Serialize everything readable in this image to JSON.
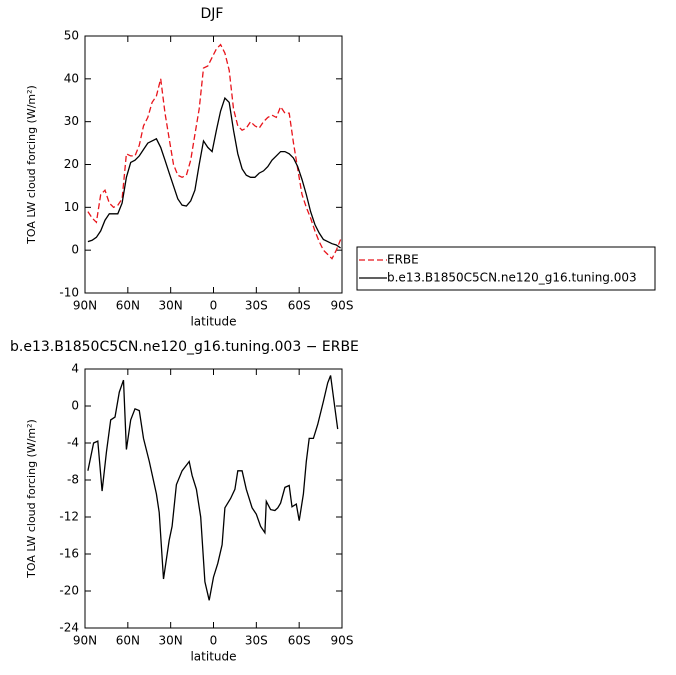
{
  "chart_data": [
    {
      "type": "line",
      "title": "DJF",
      "x_label": "latitude",
      "y_label": "TOA LW cloud forcing (W/m²)",
      "x": [
        88,
        85,
        82,
        79,
        76,
        73,
        70,
        67,
        64,
        61,
        58,
        55,
        52,
        49,
        46,
        43,
        40,
        37,
        34,
        31,
        28,
        25,
        22,
        19,
        16,
        13,
        10,
        7,
        4,
        1,
        -2,
        -5,
        -8,
        -11,
        -14,
        -17,
        -20,
        -23,
        -26,
        -29,
        -32,
        -35,
        -38,
        -41,
        -44,
        -47,
        -50,
        -53,
        -56,
        -59,
        -62,
        -65,
        -68,
        -71,
        -74,
        -77,
        -80,
        -83,
        -86,
        -89
      ],
      "series": [
        {
          "name": "ERBE",
          "color": "#e8141b",
          "dash": true,
          "values": [
            9,
            7.5,
            6.5,
            13,
            14,
            11,
            10,
            10.5,
            12,
            22.5,
            22,
            22,
            24.5,
            29,
            31,
            34.5,
            36,
            40,
            32,
            26,
            20,
            17.5,
            17,
            17.5,
            21,
            27,
            33,
            42.5,
            43,
            45,
            47,
            48,
            46,
            42,
            33,
            29,
            28,
            28.5,
            30,
            29,
            28.5,
            30,
            31,
            31.5,
            31,
            33.5,
            32,
            32,
            25,
            19,
            13,
            10,
            7.5,
            4.5,
            2,
            0,
            -1,
            -2,
            0,
            2.5
          ]
        },
        {
          "name": "b.e13.B1850C5CN.ne120_g16.tuning.003",
          "color": "#000000",
          "dash": false,
          "values": [
            2,
            2.3,
            3,
            4.5,
            7,
            8.5,
            8.5,
            8.5,
            11,
            17,
            20.5,
            21,
            22,
            23.5,
            25,
            25.5,
            26,
            24,
            21,
            18,
            15,
            12,
            10.5,
            10.3,
            11.5,
            14,
            20,
            25.5,
            24,
            23,
            28,
            32.5,
            35.5,
            34.5,
            28,
            22.5,
            19,
            17.5,
            17,
            17,
            18,
            18.5,
            19.5,
            21,
            22,
            23,
            23,
            22.5,
            21.5,
            19.5,
            16.5,
            13,
            9,
            6,
            4,
            2.5,
            2,
            1.5,
            1.2,
            0.5
          ]
        }
      ],
      "xlim": [
        90,
        -90
      ],
      "xticks": [
        {
          "value": 90,
          "label": "90N"
        },
        {
          "value": 60,
          "label": "60N"
        },
        {
          "value": 30,
          "label": "30N"
        },
        0,
        {
          "value": -30,
          "label": "30S"
        },
        {
          "value": -60,
          "label": "60S"
        },
        {
          "value": -90,
          "label": "90S"
        }
      ],
      "ylim": [
        -10,
        50
      ],
      "yticks": [
        -10,
        0,
        10,
        20,
        30,
        40,
        50
      ],
      "legend": "right"
    },
    {
      "type": "line",
      "title": "b.e13.B1850C5CN.ne120_g16.tuning.003 − ERBE",
      "x_label": "latitude",
      "y_label": "TOA LW cloud forcing (W/m²)",
      "x": [
        88,
        84,
        81,
        78,
        75,
        72,
        69,
        66,
        63,
        61,
        58,
        55,
        52,
        49,
        45,
        40,
        38,
        35,
        31,
        29,
        26,
        22,
        18,
        17,
        15,
        12,
        9,
        6,
        3,
        0,
        -3,
        -6,
        -8,
        -12,
        -15,
        -17,
        -20,
        -23,
        -27,
        -30,
        -33,
        -36,
        -37,
        -40,
        -43,
        -45,
        -47,
        -50,
        -53,
        -55,
        -58,
        -60,
        -63,
        -65,
        -67,
        -70,
        -73,
        -77,
        -80,
        -82,
        -84,
        -87
      ],
      "series": [
        {
          "name": "difference",
          "color": "#000000",
          "dash": false,
          "values": [
            -7,
            -4,
            -3.8,
            -9.2,
            -5,
            -1.5,
            -1.2,
            1.5,
            2.8,
            -4.7,
            -1.5,
            -0.3,
            -0.5,
            -3.5,
            -6,
            -9.5,
            -11.5,
            -18.7,
            -14.5,
            -13,
            -8.5,
            -7,
            -6.2,
            -6,
            -7.5,
            -9,
            -12,
            -19,
            -21,
            -18.5,
            -17,
            -15,
            -11,
            -10,
            -9,
            -7,
            -7,
            -9,
            -11,
            -11.7,
            -13,
            -13.7,
            -10.3,
            -11.2,
            -11.3,
            -11,
            -10.5,
            -8.8,
            -8.6,
            -10.9,
            -10.6,
            -12.4,
            -9.5,
            -6,
            -3.5,
            -3.5,
            -2,
            0.5,
            2.5,
            3.3,
            1,
            -2.5
          ]
        }
      ],
      "xlim": [
        90,
        -90
      ],
      "xticks": [
        {
          "value": 90,
          "label": "90N"
        },
        {
          "value": 60,
          "label": "60N"
        },
        {
          "value": 30,
          "label": "30N"
        },
        0,
        {
          "value": -30,
          "label": "30S"
        },
        {
          "value": -60,
          "label": "60S"
        },
        {
          "value": -90,
          "label": "90S"
        }
      ],
      "ylim": [
        -24,
        4
      ],
      "yticks": [
        -24,
        -20,
        -16,
        -12,
        -8,
        -4,
        0,
        4
      ]
    }
  ]
}
